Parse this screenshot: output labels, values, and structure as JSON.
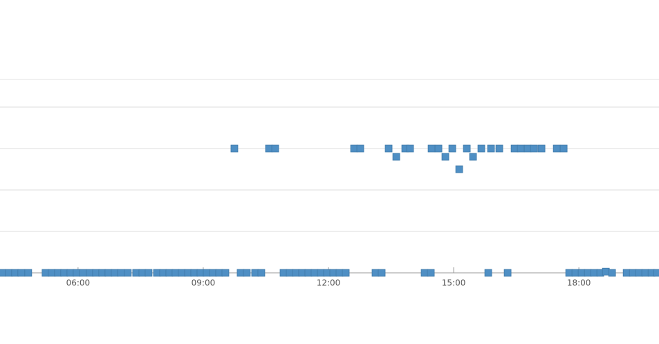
{
  "chart_data": {
    "type": "scatter",
    "xlim": [
      4.13,
      19.92
    ],
    "ylim": [
      0,
      4.667
    ],
    "xticks": [
      {
        "value": 6,
        "label": "06:00"
      },
      {
        "value": 9,
        "label": "09:00"
      },
      {
        "value": 12,
        "label": "12:00"
      },
      {
        "value": 15,
        "label": "15:00"
      },
      {
        "value": 18,
        "label": "18:00"
      }
    ],
    "yticks": [
      1,
      2,
      3,
      4
    ],
    "grid": true,
    "series": [
      {
        "color": "#4f8fc4",
        "x": [
          4.177,
          4.342,
          4.492,
          4.641,
          4.807,
          5.221,
          5.37,
          5.519,
          5.668,
          5.818,
          5.967,
          6.116,
          6.282,
          6.431,
          6.58,
          6.729,
          6.879,
          7.028,
          7.193,
          7.392,
          7.542,
          7.691,
          7.89,
          8.039,
          8.188,
          8.337,
          8.486,
          8.636,
          8.785,
          8.934,
          9.083,
          9.232,
          9.381,
          9.531,
          9.895,
          10.044,
          10.243,
          10.392,
          10.923,
          11.072,
          11.221,
          11.37,
          11.519,
          11.668,
          11.818,
          11.967,
          12.116,
          12.265,
          12.415,
          13.127,
          13.276,
          14.304,
          14.453,
          15.829,
          16.293,
          17.768,
          17.917,
          18.066,
          18.216,
          18.365,
          18.514,
          18.647,
          18.796,
          19.144,
          19.293,
          19.442,
          19.591,
          19.741,
          19.873,
          9.746,
          10.575,
          10.724,
          12.614,
          12.763,
          13.442,
          13.84,
          13.956,
          14.47,
          14.636,
          14.967,
          15.315,
          15.663,
          15.895,
          16.094,
          16.459,
          16.608,
          16.774,
          16.923,
          17.105,
          17.47,
          17.636,
          13.625,
          14.801,
          15.464,
          15.133
        ],
        "y": [
          0,
          0,
          0,
          0,
          0,
          0,
          0,
          0,
          0,
          0,
          0,
          0,
          0,
          0,
          0,
          0,
          0,
          0,
          0,
          0,
          0,
          0,
          0,
          0,
          0,
          0,
          0,
          0,
          0,
          0,
          0,
          0,
          0,
          0,
          0,
          0,
          0,
          0,
          0,
          0,
          0,
          0,
          0,
          0,
          0,
          0,
          0,
          0,
          0,
          0,
          0,
          0,
          0,
          0,
          0,
          0,
          0,
          0,
          0,
          0,
          0,
          0.03,
          0,
          0,
          0,
          0,
          0,
          0,
          0,
          3,
          3,
          3,
          3,
          3,
          3,
          3,
          3,
          3,
          3,
          3,
          3,
          3,
          3,
          3,
          3,
          3,
          3,
          3,
          3,
          3,
          3,
          2.8,
          2.8,
          2.8,
          2.5
        ]
      }
    ]
  }
}
